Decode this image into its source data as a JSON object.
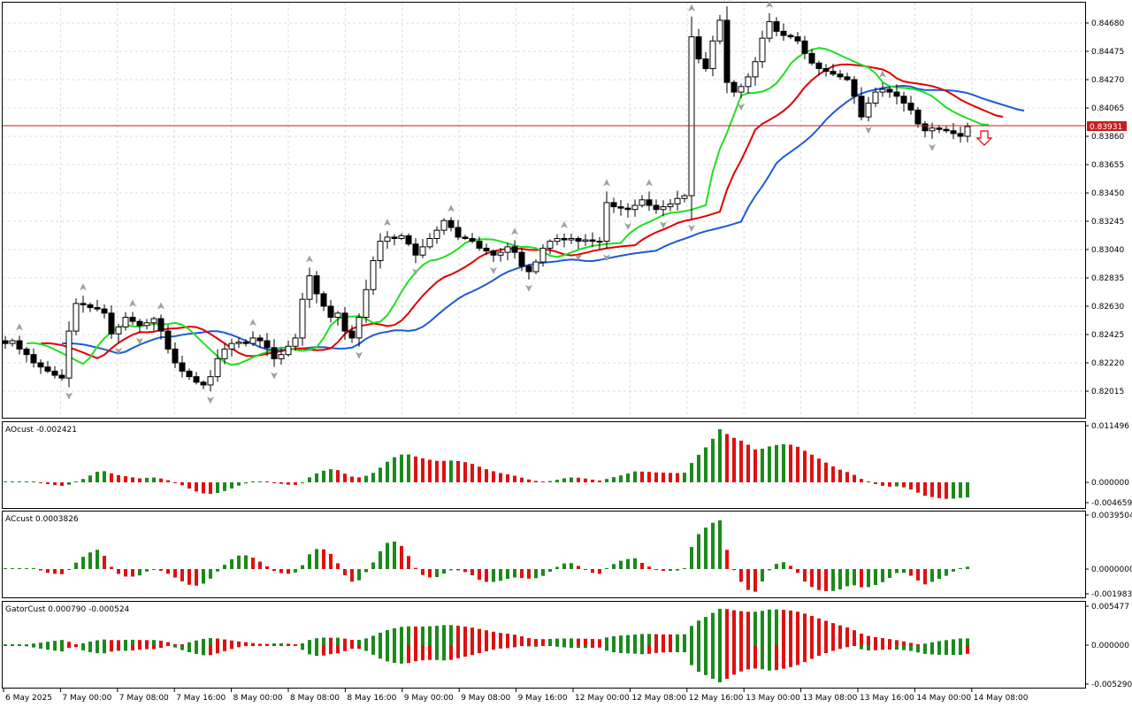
{
  "price_pane": {
    "ticks": [
      "0.84680",
      "0.84475",
      "0.84270",
      "0.84065",
      "0.83860",
      "0.83655",
      "0.83450",
      "0.83245",
      "0.83040",
      "0.82835",
      "0.82630",
      "0.82425",
      "0.82220",
      "0.82015"
    ],
    "tick_values": [
      0.8468,
      0.84475,
      0.8427,
      0.84065,
      0.8386,
      0.83655,
      0.8345,
      0.83245,
      0.8304,
      0.82835,
      0.8263,
      0.82425,
      0.8222,
      0.82015
    ],
    "current_price": 0.83931,
    "current_price_label": "0.83931",
    "colors": {
      "candle_up": "#ffffff",
      "candle_down": "#000000",
      "jaw": "#1f5ad6",
      "teeth": "#e00000",
      "lips": "#20e020",
      "hline": "#c81e1e",
      "fractal": "#a0a0a0",
      "signal_arrow": "#e00000"
    }
  },
  "ao_pane": {
    "label": "AOcust -0.002421",
    "ticks": [
      "0.011496",
      "0.000000",
      "-0.004659"
    ],
    "tick_values": [
      0.011496,
      0.0,
      -0.004659
    ]
  },
  "ac_pane": {
    "label": "ACcust 0.0003826",
    "ticks": [
      "0.0039504",
      "0.0000000",
      "-0.0019834"
    ],
    "tick_values": [
      0.0039504,
      0.0,
      -0.0019834
    ]
  },
  "gator_pane": {
    "label": "GatorCust 0.000790 -0.000524",
    "ticks": [
      "0.005477",
      "0.000000",
      "-0.005290"
    ],
    "tick_values": [
      0.005477,
      0.0,
      -0.00529
    ]
  },
  "time_axis": {
    "labels": [
      "6 May 2025",
      "7 May 00:00",
      "7 May 08:00",
      "7 May 16:00",
      "8 May 00:00",
      "8 May 08:00",
      "8 May 16:00",
      "9 May 00:00",
      "9 May 08:00",
      "9 May 16:00",
      "12 May 00:00",
      "12 May 08:00",
      "12 May 16:00",
      "13 May 00:00",
      "13 May 08:00",
      "13 May 16:00",
      "14 May 00:00",
      "14 May 08:00"
    ]
  },
  "chart_data": {
    "type": "candlestick",
    "bar_count": 137,
    "price_path": [
      0.8236,
      0.8238,
      0.8232,
      0.8228,
      0.8222,
      0.8219,
      0.8216,
      0.8213,
      0.8211,
      0.8245,
      0.8265,
      0.8264,
      0.8262,
      0.8261,
      0.8258,
      0.8243,
      0.8248,
      0.8255,
      0.8252,
      0.8249,
      0.8251,
      0.8254,
      0.8245,
      0.8232,
      0.8222,
      0.8216,
      0.8212,
      0.8208,
      0.8206,
      0.8212,
      0.8225,
      0.8232,
      0.8236,
      0.8237,
      0.8236,
      0.824,
      0.8238,
      0.8233,
      0.8225,
      0.8228,
      0.8234,
      0.824,
      0.8268,
      0.8285,
      0.8272,
      0.8263,
      0.8255,
      0.8258,
      0.8245,
      0.824,
      0.8255,
      0.8275,
      0.8296,
      0.831,
      0.8313,
      0.8312,
      0.8314,
      0.8308,
      0.83,
      0.8306,
      0.8312,
      0.8318,
      0.8325,
      0.832,
      0.8313,
      0.8312,
      0.831,
      0.8305,
      0.8303,
      0.83,
      0.8302,
      0.8306,
      0.8302,
      0.8292,
      0.8288,
      0.8295,
      0.8305,
      0.831,
      0.8312,
      0.8311,
      0.8312,
      0.831,
      0.8311,
      0.831,
      0.831,
      0.8338,
      0.8335,
      0.8334,
      0.8333,
      0.8336,
      0.834,
      0.8336,
      0.8333,
      0.8335,
      0.8337,
      0.8341,
      0.8343,
      0.8458,
      0.8442,
      0.8435,
      0.8455,
      0.847,
      0.8425,
      0.8418,
      0.8422,
      0.8429,
      0.844,
      0.8457,
      0.8469,
      0.8462,
      0.8459,
      0.8458,
      0.8455,
      0.8446,
      0.8439,
      0.8435,
      0.8433,
      0.8431,
      0.8429,
      0.8427,
      0.8415,
      0.84,
      0.841,
      0.8418,
      0.842,
      0.8418,
      0.8415,
      0.841,
      0.8405,
      0.8395,
      0.839,
      0.8392,
      0.8391,
      0.839,
      0.8388,
      0.8386,
      0.8393
    ],
    "signal_arrow": "down"
  }
}
